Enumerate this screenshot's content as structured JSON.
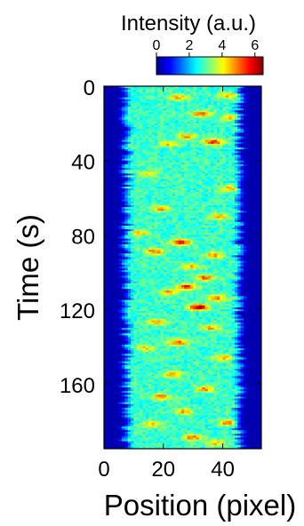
{
  "chart_data": {
    "type": "heatmap",
    "title": "",
    "xlabel": "Position (pixel)",
    "ylabel": "Time (s)",
    "xlim": [
      0,
      53
    ],
    "ylim": [
      0,
      195
    ],
    "x_ticks": [
      0,
      20,
      40
    ],
    "y_ticks": [
      0,
      40,
      80,
      120,
      160
    ],
    "y_axis_inverted": true,
    "grid": false,
    "colormap": "jet",
    "colorbar": {
      "label": "Intensity (a.u.)",
      "ticks": [
        0,
        2,
        4,
        6
      ],
      "range": [
        0,
        6.5
      ],
      "placement": "top"
    },
    "background_intensity": 0.3,
    "signal_band_x": [
      8,
      45
    ],
    "typical_band_intensity": [
      2,
      3
    ],
    "hotspots": [
      {
        "x": 25,
        "t": 6,
        "v": 3.8
      },
      {
        "x": 42,
        "t": 5,
        "v": 3.8
      },
      {
        "x": 33,
        "t": 15,
        "v": 4.5
      },
      {
        "x": 43,
        "t": 17,
        "v": 3.8
      },
      {
        "x": 37,
        "t": 30,
        "v": 4.8
      },
      {
        "x": 28,
        "t": 27,
        "v": 4
      },
      {
        "x": 22,
        "t": 31,
        "v": 3.8
      },
      {
        "x": 15,
        "t": 47,
        "v": 3.5
      },
      {
        "x": 43,
        "t": 55,
        "v": 4.3
      },
      {
        "x": 19,
        "t": 66,
        "v": 4
      },
      {
        "x": 39,
        "t": 70,
        "v": 3.8
      },
      {
        "x": 12,
        "t": 79,
        "v": 3.8
      },
      {
        "x": 26,
        "t": 84,
        "v": 5
      },
      {
        "x": 17,
        "t": 89,
        "v": 4.3
      },
      {
        "x": 37,
        "t": 91,
        "v": 4
      },
      {
        "x": 29,
        "t": 97,
        "v": 3.8
      },
      {
        "x": 34,
        "t": 103,
        "v": 4.5
      },
      {
        "x": 28,
        "t": 108,
        "v": 5
      },
      {
        "x": 22,
        "t": 111,
        "v": 4
      },
      {
        "x": 32,
        "t": 119,
        "v": 5.8
      },
      {
        "x": 38,
        "t": 114,
        "v": 4
      },
      {
        "x": 18,
        "t": 127,
        "v": 4
      },
      {
        "x": 36,
        "t": 130,
        "v": 3.8
      },
      {
        "x": 25,
        "t": 138,
        "v": 4.5
      },
      {
        "x": 14,
        "t": 141,
        "v": 3.5
      },
      {
        "x": 40,
        "t": 146,
        "v": 3.8
      },
      {
        "x": 23,
        "t": 155,
        "v": 3.8
      },
      {
        "x": 19,
        "t": 167,
        "v": 4.3
      },
      {
        "x": 34,
        "t": 163,
        "v": 4
      },
      {
        "x": 27,
        "t": 175,
        "v": 3.8
      },
      {
        "x": 42,
        "t": 181,
        "v": 4.3
      },
      {
        "x": 16,
        "t": 182,
        "v": 3.8
      },
      {
        "x": 30,
        "t": 189,
        "v": 4.3
      },
      {
        "x": 38,
        "t": 192,
        "v": 3.8
      }
    ]
  }
}
